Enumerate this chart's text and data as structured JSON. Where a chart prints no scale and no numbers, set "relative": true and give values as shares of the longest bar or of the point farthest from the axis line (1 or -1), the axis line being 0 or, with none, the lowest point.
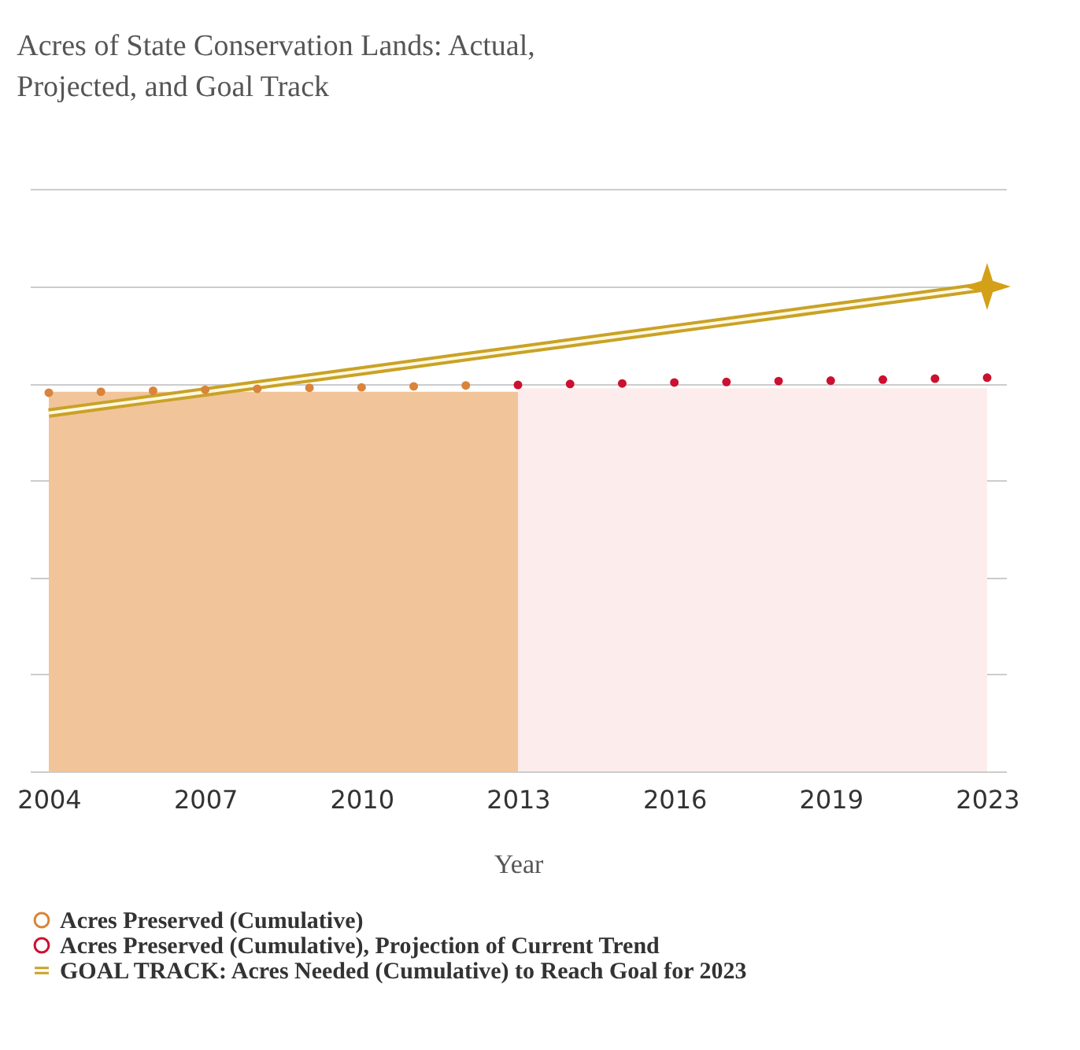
{
  "chart_data": {
    "type": "scatter",
    "title": "Acres of State Conservation Lands: Actual, Projected, and Goal Track",
    "xlabel": "Year",
    "relative": true,
    "grid": "y",
    "legend": "bottom left",
    "categories": [
      "2004",
      null,
      null,
      "2007",
      null,
      null,
      "2010",
      null,
      null,
      "2013",
      null,
      null,
      "2016",
      null,
      null,
      "2019",
      null,
      null,
      "2023"
    ],
    "series": [
      {
        "type": "area",
        "color": "#f2c49a",
        "values": [
          0.783,
          0.783,
          0.783,
          0.783,
          0.783,
          0.783,
          0.783,
          0.783,
          0.783,
          0.783,
          null,
          null,
          null,
          null,
          null,
          null,
          null,
          null,
          null
        ]
      },
      {
        "type": "area",
        "color": "#fdecec",
        "values": [
          null,
          null,
          null,
          null,
          null,
          null,
          null,
          null,
          null,
          0.79,
          0.79,
          0.79,
          0.79,
          0.79,
          0.79,
          0.79,
          0.79,
          0.79,
          0.79
        ]
      },
      {
        "type": "line",
        "name": "GOAL TRACK: Acres Needed (Cumulative) to Reach Goal for 2023",
        "color": "#c9a227",
        "values": [
          0.739,
          0.7535,
          0.768,
          0.7825,
          0.797,
          0.8115,
          0.826,
          0.8405,
          0.855,
          0.8695,
          0.884,
          0.8985,
          0.913,
          0.9275,
          0.942,
          0.9565,
          0.971,
          0.9855,
          1.0
        ]
      },
      {
        "type": "scatter",
        "marker": "star",
        "color": "#d4a017",
        "values": [
          null,
          null,
          null,
          null,
          null,
          null,
          null,
          null,
          null,
          null,
          null,
          null,
          null,
          null,
          null,
          null,
          null,
          null,
          1.0
        ]
      },
      {
        "marker": "circle",
        "name": "Acres Preserved (Cumulative)",
        "color": "#d9843a",
        "values": [
          0.781,
          0.783,
          0.785,
          0.787,
          0.789,
          0.791,
          0.792,
          0.794,
          0.796,
          null,
          null,
          null,
          null,
          null,
          null,
          null,
          null,
          null,
          null
        ]
      },
      {
        "marker": "circle",
        "name": "Acres Preserved (Cumulative), Projection of Current Trend",
        "color": "#cc1030",
        "values": [
          null,
          null,
          null,
          null,
          null,
          null,
          null,
          null,
          null,
          0.797,
          0.799,
          0.8,
          0.802,
          0.803,
          0.805,
          0.806,
          0.808,
          0.81,
          0.812
        ]
      }
    ]
  }
}
